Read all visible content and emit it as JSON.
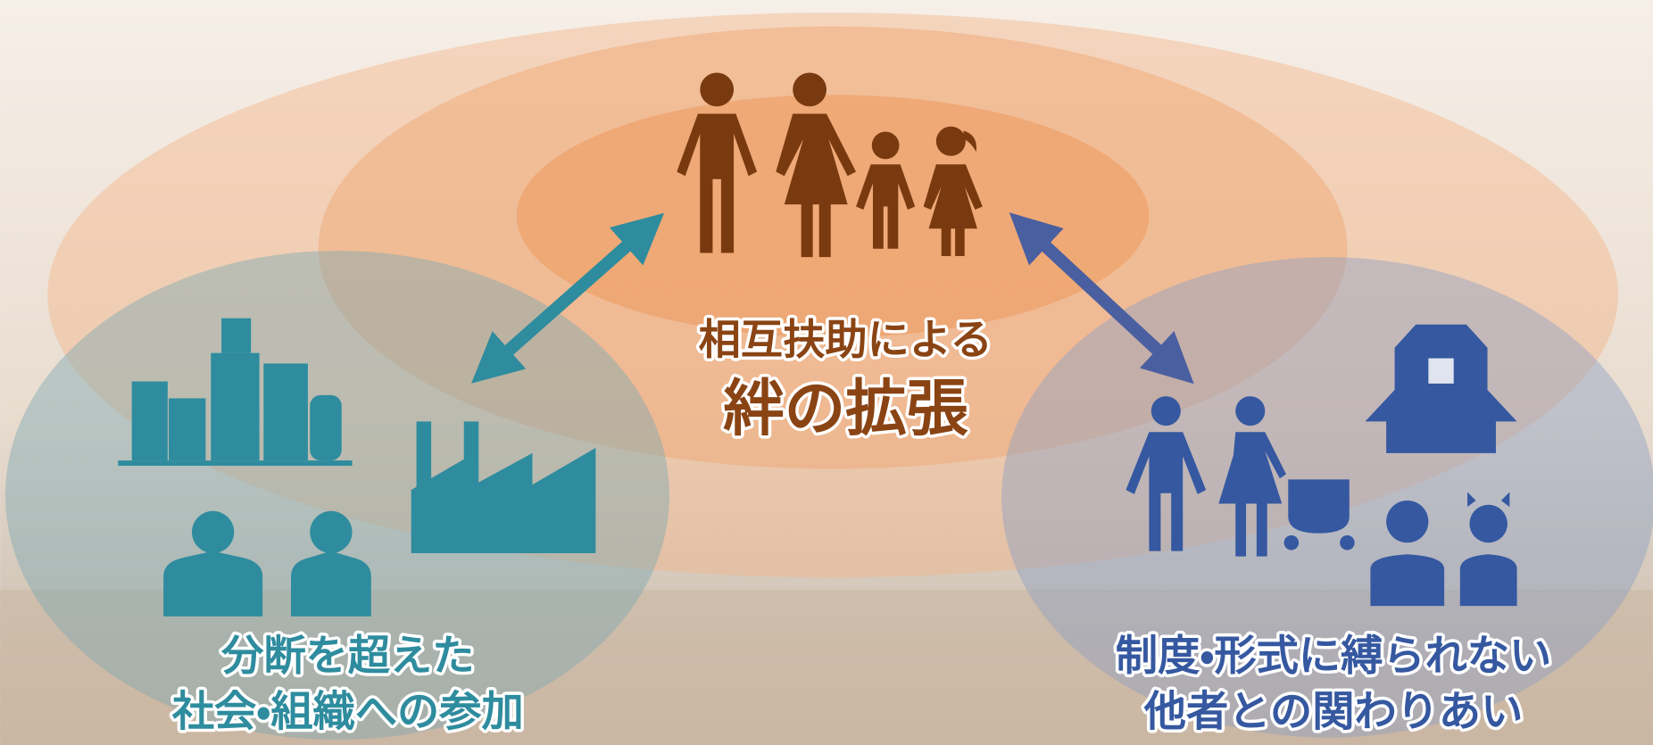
{
  "center": {
    "lines": [
      "相互扶助による",
      "絆の拡張"
    ]
  },
  "left": {
    "lines": [
      "分断を超えた",
      "社会・組織への参加"
    ]
  },
  "right": {
    "lines": [
      "制度・形式に縛られない",
      "他者との関わりあい"
    ]
  }
}
